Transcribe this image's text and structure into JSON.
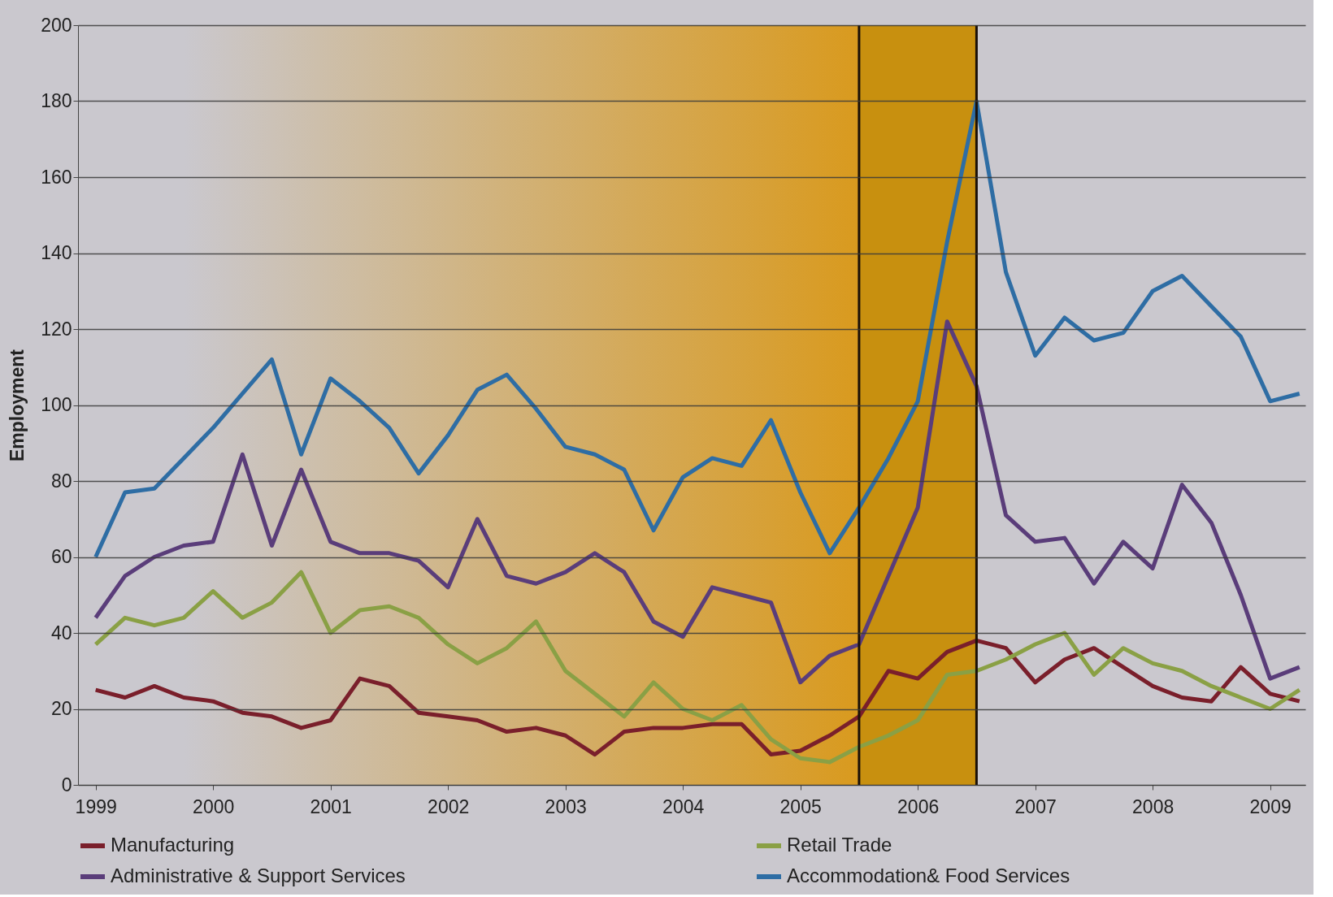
{
  "chart_data": {
    "type": "line",
    "ylabel": "Employment",
    "x": [
      1999,
      1999.25,
      1999.5,
      1999.75,
      2000,
      2000.25,
      2000.5,
      2000.75,
      2001,
      2001.25,
      2001.5,
      2001.75,
      2002,
      2002.25,
      2002.5,
      2002.75,
      2003,
      2003.25,
      2003.5,
      2003.75,
      2004,
      2004.25,
      2004.5,
      2004.75,
      2005,
      2005.25,
      2005.5,
      2005.75,
      2006,
      2006.25,
      2006.5,
      2006.75,
      2007,
      2007.25,
      2007.5,
      2007.75,
      2008,
      2008.25,
      2008.5,
      2008.75,
      2009,
      2009.25
    ],
    "series": [
      {
        "name": "Manufacturing",
        "color": "#7a1f2b",
        "values": [
          25,
          23,
          26,
          23,
          22,
          19,
          18,
          15,
          17,
          28,
          26,
          19,
          18,
          17,
          14,
          15,
          13,
          8,
          14,
          15,
          15,
          16,
          16,
          8,
          9,
          13,
          18,
          30,
          28,
          35,
          38,
          36,
          27,
          33,
          36,
          31,
          26,
          23,
          22,
          31,
          24,
          22
        ]
      },
      {
        "name": "Retail Trade",
        "color": "#8aa045",
        "values": [
          37,
          44,
          42,
          44,
          51,
          44,
          48,
          56,
          40,
          46,
          47,
          44,
          37,
          32,
          36,
          43,
          30,
          24,
          18,
          27,
          20,
          17,
          21,
          12,
          7,
          6,
          10,
          13,
          17,
          29,
          30,
          33,
          37,
          40,
          29,
          36,
          32,
          30,
          26,
          23,
          20,
          25
        ]
      },
      {
        "name": "Administrative & Support Services",
        "color": "#5a3d7a",
        "values": [
          44,
          55,
          60,
          63,
          64,
          87,
          63,
          83,
          64,
          61,
          61,
          59,
          52,
          70,
          55,
          53,
          56,
          61,
          56,
          43,
          39,
          52,
          50,
          48,
          27,
          34,
          37,
          55,
          73,
          122,
          105,
          71,
          64,
          65,
          53,
          64,
          57,
          79,
          69,
          50,
          28,
          31
        ]
      },
      {
        "name": "Accommodation& Food Services",
        "color": "#2e6da4",
        "values": [
          60,
          77,
          78,
          86,
          94,
          103,
          112,
          87,
          107,
          101,
          94,
          82,
          92,
          104,
          108,
          99,
          89,
          87,
          83,
          67,
          81,
          86,
          84,
          96,
          77,
          61,
          73,
          86,
          101,
          143,
          180,
          135,
          113,
          123,
          117,
          119,
          130,
          134,
          126,
          118,
          101,
          103
        ]
      }
    ],
    "xlim": [
      1998.85,
      2009.3
    ],
    "xticks": [
      1999,
      2000,
      2001,
      2002,
      2003,
      2004,
      2005,
      2006,
      2007,
      2008,
      2009
    ],
    "ylim": [
      0,
      200
    ],
    "yticks": [
      0,
      20,
      40,
      60,
      80,
      100,
      120,
      140,
      160,
      180,
      200
    ],
    "bands": [
      {
        "axis": "x",
        "from": 1999.75,
        "to": 2005.5,
        "color": "#d99a1e"
      },
      {
        "axis": "x",
        "from": 2005.5,
        "to": 2006.5,
        "color": "#c8900f"
      }
    ],
    "ref_lines": [
      {
        "axis": "x",
        "value": 2005.5,
        "color": "#1a1008"
      },
      {
        "axis": "x",
        "value": 2006.5,
        "color": "#1a1008"
      }
    ],
    "grid": "y",
    "legend": "bottom",
    "line_style": "solid",
    "marker": "none"
  }
}
